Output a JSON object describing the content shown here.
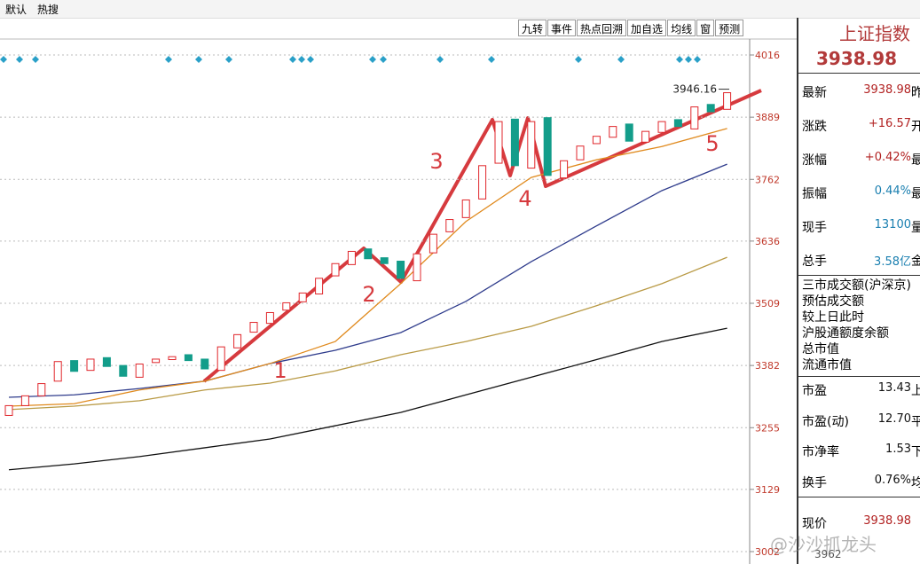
{
  "toolbar": {
    "tabs": [
      "默认",
      "热搜"
    ],
    "buttons": [
      "九转",
      "事件",
      "热点回溯",
      "加自选",
      "均线",
      "窗",
      "预测"
    ]
  },
  "chart_data": {
    "type": "candlestick",
    "ylim": [
      3002,
      4016
    ],
    "yticks": [
      3002,
      3129,
      3255,
      3382,
      3509,
      3636,
      3762,
      3889,
      4016
    ],
    "grid": true,
    "up_color": "#e0262b",
    "down_color": "#139d8a",
    "candles": {
      "open": [
        3280,
        3300,
        3320,
        3350,
        3392,
        3372,
        3398,
        3382,
        3358,
        3388,
        3394,
        3404,
        3395,
        3372,
        3418,
        3450,
        3468,
        3495,
        3512,
        3528,
        3565,
        3588,
        3620,
        3602,
        3595,
        3555,
        3612,
        3655,
        3684,
        3722,
        3795,
        3885,
        3785,
        3888,
        3765,
        3802,
        3835,
        3848,
        3875,
        3838,
        3858,
        3884,
        3865,
        3915,
        3905
      ],
      "close": [
        3300,
        3320,
        3345,
        3390,
        3370,
        3395,
        3380,
        3360,
        3385,
        3395,
        3400,
        3392,
        3375,
        3420,
        3445,
        3470,
        3490,
        3510,
        3530,
        3560,
        3590,
        3615,
        3600,
        3590,
        3560,
        3610,
        3650,
        3680,
        3720,
        3790,
        3880,
        3790,
        3880,
        3770,
        3800,
        3830,
        3850,
        3870,
        3840,
        3860,
        3880,
        3870,
        3910,
        3900,
        3938.98
      ]
    },
    "series": [
      {
        "color": "#111111",
        "x": [
          0,
          4,
          8,
          12,
          16,
          20,
          24,
          28,
          32,
          36,
          40,
          44
        ],
        "values": [
          3169,
          3181,
          3196,
          3214,
          3232,
          3259,
          3286,
          3322,
          3358,
          3394,
          3431,
          3458
        ]
      },
      {
        "color": "#b99a45",
        "x": [
          0,
          4,
          8,
          12,
          16,
          20,
          24,
          28,
          32,
          36,
          40,
          44
        ],
        "values": [
          3292,
          3299,
          3310,
          3332,
          3346,
          3371,
          3404,
          3431,
          3462,
          3504,
          3549,
          3603
        ]
      },
      {
        "color": "#2f3c8c",
        "x": [
          0,
          4,
          8,
          12,
          16,
          20,
          24,
          28,
          32,
          36,
          40,
          44
        ],
        "values": [
          3317,
          3322,
          3335,
          3350,
          3386,
          3413,
          3449,
          3513,
          3594,
          3667,
          3739,
          3793
        ]
      },
      {
        "color": "#e08a1e",
        "x": [
          0,
          4,
          8,
          12,
          16,
          20,
          24,
          28,
          32,
          36,
          40,
          44
        ],
        "values": [
          3299,
          3304,
          3332,
          3350,
          3386,
          3431,
          3549,
          3676,
          3766,
          3802,
          3829,
          3866
        ]
      }
    ],
    "peak_label": 3946.16,
    "wave_labels": [
      "1",
      "2",
      "3",
      "4",
      "5"
    ]
  },
  "quote": {
    "title": "上证指数",
    "price": "3938.98",
    "rows": [
      [
        "最新",
        "3938.98",
        "昨"
      ],
      [
        "涨跌",
        "+16.57",
        "开"
      ],
      [
        "涨幅",
        "+0.42%",
        "最"
      ],
      [
        "振幅",
        "0.44%",
        "最"
      ],
      [
        "现手",
        "13100",
        "量"
      ],
      [
        "总手",
        "3.58亿",
        "金"
      ]
    ],
    "list": [
      "三市成交额(沪深京)",
      "预估成交额",
      "较上日此时",
      "沪股通额度余额",
      "总市值",
      "流通市值"
    ],
    "ratios": [
      [
        "市盈",
        "13.43",
        "上"
      ],
      [
        "市盈(动)",
        "12.70",
        "平"
      ],
      [
        "市净率",
        "1.53",
        "下"
      ],
      [
        "换手",
        "0.76%",
        "均"
      ]
    ],
    "current": [
      "现价",
      "3938.98"
    ],
    "bottom": "3962"
  },
  "watermark": "@沙沙抓龙头"
}
